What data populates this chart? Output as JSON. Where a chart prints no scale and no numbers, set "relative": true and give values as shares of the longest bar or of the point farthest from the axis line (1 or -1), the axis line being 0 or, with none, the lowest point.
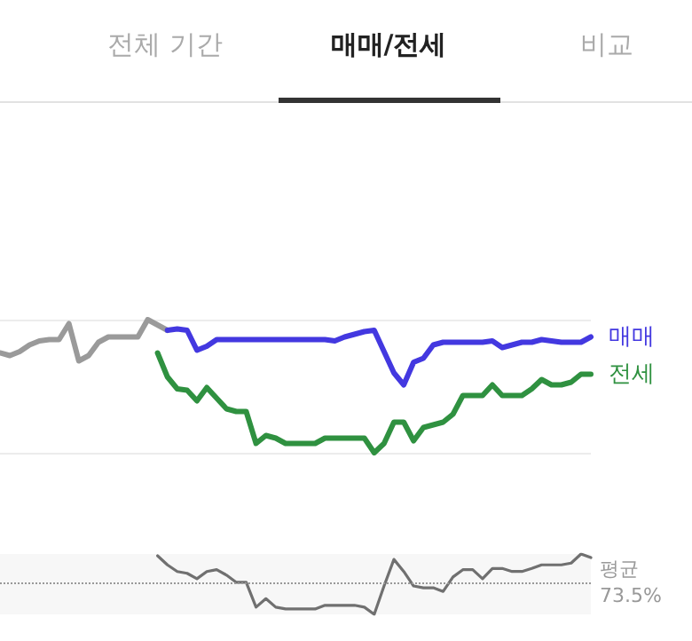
{
  "chart_data": [
    {
      "type": "line",
      "relative": true,
      "grid": "y",
      "legend": false,
      "line_style": "solid",
      "annotations": [
        "전체 기간",
        "매매/전세",
        "비교"
      ],
      "categories": [
        null,
        null,
        null,
        null,
        null,
        null,
        null,
        null,
        null,
        null,
        null,
        null,
        null,
        null,
        null,
        null,
        null,
        null,
        null,
        null,
        null,
        null,
        null,
        null,
        null,
        null,
        null,
        null,
        null,
        null,
        null,
        null,
        null,
        null,
        null,
        null,
        null,
        null,
        null,
        null,
        null,
        null,
        null,
        null,
        null,
        null,
        null,
        null,
        null,
        null,
        null,
        null,
        null,
        null,
        null,
        null,
        null,
        null,
        null,
        null,
        null
      ],
      "series": [
        {
          "color": "#9a9a9a",
          "values": [
            0.75,
            0.73,
            0.76,
            0.81,
            0.84,
            0.85,
            0.85,
            0.97,
            0.69,
            0.73,
            0.83,
            0.87,
            0.87,
            0.87,
            0.87,
            1.0,
            0.96,
            0.92,
            null,
            null,
            null,
            null,
            null,
            null,
            null,
            null,
            null,
            null,
            null,
            null,
            null,
            null,
            null,
            null,
            null,
            null,
            null,
            null,
            null,
            null,
            null,
            null,
            null,
            null,
            null,
            null,
            null,
            null,
            null,
            null,
            null,
            null,
            null,
            null,
            null,
            null,
            null,
            null,
            null,
            null,
            null
          ]
        },
        {
          "name": "매매",
          "color": "#4338e0",
          "values": [
            null,
            null,
            null,
            null,
            null,
            null,
            null,
            null,
            null,
            null,
            null,
            null,
            null,
            null,
            null,
            null,
            null,
            0.92,
            0.93,
            0.92,
            0.77,
            0.8,
            0.85,
            0.85,
            0.85,
            0.85,
            0.85,
            0.85,
            0.85,
            0.85,
            0.85,
            0.85,
            0.85,
            0.85,
            0.84,
            0.87,
            0.89,
            0.91,
            0.92,
            0.76,
            0.6,
            0.51,
            0.68,
            0.71,
            0.81,
            0.83,
            0.83,
            0.83,
            0.83,
            0.83,
            0.84,
            0.79,
            0.81,
            0.83,
            0.83,
            0.85,
            0.84,
            0.83,
            0.83,
            0.83,
            0.87
          ]
        },
        {
          "name": "전세",
          "color": "#2f9140",
          "values": [
            null,
            null,
            null,
            null,
            null,
            null,
            null,
            null,
            null,
            null,
            null,
            null,
            null,
            null,
            null,
            null,
            0.75,
            0.57,
            0.48,
            0.47,
            0.39,
            0.49,
            0.41,
            0.33,
            0.31,
            0.31,
            0.07,
            0.13,
            0.11,
            0.07,
            0.07,
            0.07,
            0.07,
            0.11,
            0.11,
            0.11,
            0.11,
            0.11,
            0.0,
            0.07,
            0.23,
            0.23,
            0.09,
            0.19,
            0.21,
            0.23,
            0.29,
            0.43,
            0.43,
            0.43,
            0.51,
            0.43,
            0.43,
            0.43,
            0.48,
            0.55,
            0.51,
            0.51,
            0.53,
            0.59,
            0.59
          ]
        }
      ]
    },
    {
      "type": "line",
      "relative": true,
      "grid": false,
      "legend": false,
      "line_style": "solid",
      "categories": [
        null,
        null,
        null,
        null,
        null,
        null,
        null,
        null,
        null,
        null,
        null,
        null,
        null,
        null,
        null,
        null,
        null,
        null,
        null,
        null,
        null,
        null,
        null,
        null,
        null,
        null,
        null,
        null,
        null,
        null,
        null,
        null,
        null,
        null,
        null,
        null,
        null,
        null,
        null,
        null,
        null,
        null,
        null,
        null,
        null,
        null,
        null,
        null,
        null,
        null,
        null,
        null,
        null,
        null,
        null,
        null,
        null,
        null,
        null,
        null,
        null
      ],
      "series": [
        {
          "color": "#707070",
          "values": [
            null,
            null,
            null,
            null,
            null,
            null,
            null,
            null,
            null,
            null,
            null,
            null,
            null,
            null,
            null,
            null,
            0.97,
            0.82,
            0.71,
            0.68,
            0.59,
            0.71,
            0.74,
            0.65,
            0.53,
            0.53,
            0.12,
            0.26,
            0.12,
            0.09,
            0.09,
            0.09,
            0.09,
            0.15,
            0.15,
            0.15,
            0.15,
            0.12,
            0.0,
            0.47,
            0.91,
            0.71,
            0.47,
            0.44,
            0.44,
            0.38,
            0.62,
            0.74,
            0.74,
            0.59,
            0.76,
            0.76,
            0.71,
            0.71,
            0.76,
            0.82,
            0.82,
            0.82,
            0.85,
            1.0,
            0.94
          ]
        }
      ],
      "ref_lines": [
        {
          "axis": "y",
          "value": 0.53,
          "label": "평균 73.5%",
          "color": "#999999",
          "line_style": "dotted"
        }
      ]
    }
  ]
}
